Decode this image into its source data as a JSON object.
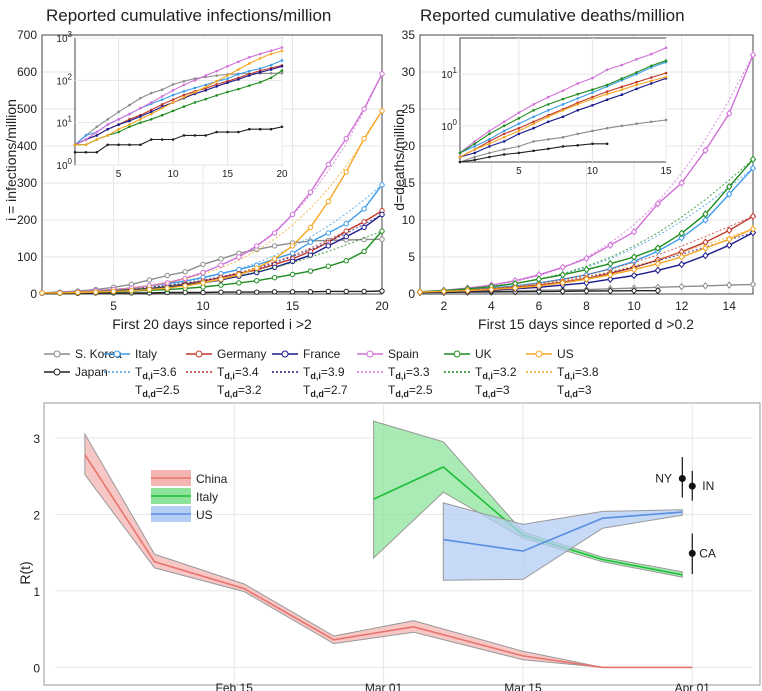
{
  "chart_data": [
    {
      "type": "line",
      "title": "Reported cumulative infections/million",
      "xlabel": "First 20 days since reported i >2",
      "ylabel": "i = infections/million",
      "xlim": [
        1,
        20
      ],
      "ylim": [
        0,
        700
      ],
      "xticks": [
        5,
        10,
        15,
        20
      ],
      "yticks": [
        0,
        100,
        200,
        300,
        400,
        500,
        600,
        700
      ],
      "grid": true,
      "x": [
        1,
        2,
        3,
        4,
        5,
        6,
        7,
        8,
        9,
        10,
        11,
        12,
        13,
        14,
        15,
        16,
        17,
        18,
        19,
        20
      ],
      "series": [
        {
          "name": "S. Korea",
          "color": "#8c8c8c",
          "values": [
            3,
            5,
            8,
            12,
            18,
            26,
            38,
            50,
            60,
            80,
            95,
            110,
            120,
            130,
            138,
            143,
            145,
            146,
            147,
            148
          ]
        },
        {
          "name": "Japan",
          "color": "#222222",
          "values": [
            2,
            2,
            2,
            3,
            3,
            3,
            3,
            4,
            4,
            4,
            5,
            5,
            5,
            6,
            6,
            6,
            7,
            7,
            7,
            8
          ]
        },
        {
          "name": "Italy",
          "color": "#3d9be9",
          "values": [
            3,
            5,
            6,
            9,
            12,
            16,
            22,
            28,
            35,
            45,
            55,
            66,
            78,
            95,
            110,
            140,
            165,
            190,
            230,
            295
          ]
        },
        {
          "name": "Germany",
          "color": "#c0392b",
          "values": [
            3,
            4,
            5,
            7,
            9,
            12,
            15,
            20,
            27,
            35,
            45,
            55,
            65,
            80,
            95,
            115,
            140,
            170,
            195,
            225
          ]
        },
        {
          "name": "France",
          "color": "#1a1a8c",
          "values": [
            3,
            4,
            5,
            7,
            9,
            11,
            14,
            18,
            24,
            30,
            38,
            48,
            58,
            72,
            88,
            105,
            130,
            155,
            180,
            215
          ]
        },
        {
          "name": "Spain",
          "color": "#d070d8",
          "values": [
            3,
            4,
            6,
            9,
            12,
            16,
            22,
            30,
            42,
            58,
            78,
            100,
            130,
            165,
            215,
            275,
            350,
            420,
            500,
            595
          ]
        },
        {
          "name": "UK",
          "color": "#1e8c1e",
          "values": [
            3,
            3,
            4,
            5,
            6,
            8,
            10,
            12,
            15,
            19,
            24,
            30,
            36,
            44,
            53,
            62,
            75,
            90,
            115,
            170
          ]
        },
        {
          "name": "US",
          "color": "#f5a623",
          "values": [
            3,
            3,
            4,
            5,
            7,
            9,
            12,
            16,
            22,
            30,
            40,
            52,
            70,
            95,
            130,
            180,
            250,
            330,
            420,
            495
          ]
        }
      ],
      "legend": [
        {
          "name": "S. Korea",
          "color": "#8c8c8c",
          "fit": ""
        },
        {
          "name": "Japan",
          "color": "#222222",
          "fit": ""
        },
        {
          "name": "Italy",
          "color": "#3d9be9",
          "fit": "T",
          "fitSub": "d,i",
          "fitVal": "=3.6"
        },
        {
          "name": "Germany",
          "color": "#c0392b",
          "fit": "T",
          "fitSub": "d,i",
          "fitVal": "=3.4"
        },
        {
          "name": "France",
          "color": "#1a1a8c",
          "fit": "T",
          "fitSub": "d,i",
          "fitVal": "=3.9"
        },
        {
          "name": "Spain",
          "color": "#d070d8",
          "fit": "T",
          "fitSub": "d,i",
          "fitVal": "=3.3"
        },
        {
          "name": "UK",
          "color": "#1e8c1e",
          "fit": "T",
          "fitSub": "d,i",
          "fitVal": "=3.2"
        },
        {
          "name": "US",
          "color": "#f5a623",
          "fit": "T",
          "fitSub": "d,i",
          "fitVal": "=3.8"
        }
      ],
      "inset": {
        "xlim": [
          1,
          20
        ],
        "ylim_log": [
          1,
          1000
        ],
        "xticks": [
          5,
          10,
          15,
          20
        ],
        "yticks": [
          {
            "base": "10",
            "exp": "0"
          },
          {
            "base": "10",
            "exp": "1"
          },
          {
            "base": "10",
            "exp": "2"
          },
          {
            "base": "10",
            "exp": "3"
          }
        ],
        "scale": "log"
      }
    },
    {
      "type": "line",
      "title": "Reported cumulative deaths/million",
      "xlabel": "First 15 days since reported d >0.2",
      "ylabel": "d=deaths/million",
      "xlim": [
        1,
        15
      ],
      "ylim": [
        0,
        35
      ],
      "xticks": [
        2,
        4,
        6,
        8,
        10,
        12,
        14
      ],
      "yticks": [
        0,
        5,
        10,
        15,
        20,
        25,
        30,
        35
      ],
      "grid": true,
      "x": [
        1,
        2,
        3,
        4,
        5,
        6,
        7,
        8,
        9,
        10,
        11,
        12,
        13,
        14,
        15
      ],
      "series": [
        {
          "name": "S. Korea",
          "color": "#8c8c8c",
          "values": [
            0.2,
            0.25,
            0.3,
            0.35,
            0.4,
            0.5,
            0.55,
            0.6,
            0.7,
            0.8,
            0.9,
            1.0,
            1.1,
            1.2,
            1.3
          ]
        },
        {
          "name": "Japan",
          "color": "#222222",
          "values": [
            0.2,
            0.22,
            0.25,
            0.28,
            0.3,
            0.33,
            0.36,
            0.4,
            0.42,
            0.45,
            0.45,
            null,
            null,
            null,
            null
          ]
        },
        {
          "name": "Italy",
          "color": "#3d9be9",
          "values": [
            0.3,
            0.4,
            0.55,
            0.8,
            1.1,
            1.5,
            2.0,
            2.6,
            3.4,
            4.4,
            5.8,
            7.6,
            10.0,
            13.5,
            17.0
          ]
        },
        {
          "name": "Germany",
          "color": "#c0392b",
          "values": [
            0.25,
            0.35,
            0.5,
            0.7,
            0.9,
            1.2,
            1.6,
            2.1,
            2.8,
            3.6,
            4.6,
            5.7,
            7.0,
            8.6,
            10.5
          ]
        },
        {
          "name": "France",
          "color": "#1a1a8c",
          "values": [
            0.25,
            0.3,
            0.4,
            0.5,
            0.7,
            0.9,
            1.2,
            1.5,
            2.0,
            2.5,
            3.2,
            4.0,
            5.2,
            6.6,
            8.3
          ]
        },
        {
          "name": "Spain",
          "color": "#d070d8",
          "values": [
            0.3,
            0.5,
            0.8,
            1.2,
            1.8,
            2.6,
            3.6,
            4.8,
            6.6,
            8.4,
            12.2,
            15.0,
            19.4,
            24.4,
            32.3
          ]
        },
        {
          "name": "UK",
          "color": "#1e8c1e",
          "values": [
            0.3,
            0.45,
            0.7,
            1.0,
            1.4,
            2.0,
            2.6,
            3.3,
            4.1,
            5.0,
            6.2,
            8.2,
            10.8,
            14.5,
            18.2
          ]
        },
        {
          "name": "US",
          "color": "#f5a623",
          "values": [
            0.25,
            0.35,
            0.45,
            0.6,
            0.8,
            1.1,
            1.5,
            2.0,
            2.6,
            3.3,
            4.1,
            5.0,
            6.2,
            7.4,
            8.8
          ]
        }
      ],
      "legend": [
        {
          "name": "Italy",
          "fit": "T",
          "fitSub": "d,d",
          "fitVal": "=2.5"
        },
        {
          "name": "Germany",
          "fit": "T",
          "fitSub": "d,d",
          "fitVal": "=3.2"
        },
        {
          "name": "France",
          "fit": "T",
          "fitSub": "d,d",
          "fitVal": "=2.7"
        },
        {
          "name": "Spain",
          "fit": "T",
          "fitSub": "d,d",
          "fitVal": "=2.5"
        },
        {
          "name": "UK",
          "fit": "T",
          "fitSub": "d,d",
          "fitVal": "=3"
        },
        {
          "name": "US",
          "fit": "T",
          "fitSub": "d,d",
          "fitVal": "=3"
        }
      ],
      "inset": {
        "xlim": [
          1,
          15
        ],
        "ylim_log": [
          0.2,
          50
        ],
        "xticks": [
          5,
          10,
          15
        ],
        "yticks": [
          {
            "base": "10",
            "exp": "0"
          },
          {
            "base": "10",
            "exp": "1"
          }
        ],
        "scale": "log"
      }
    },
    {
      "type": "area",
      "title": "",
      "xlabel": "",
      "ylabel": "R(t)",
      "ylim": [
        -0.1,
        3.3
      ],
      "yticks": [
        0,
        1,
        2,
        3
      ],
      "xticks": [
        {
          "label": "Feb 15",
          "day": 46
        },
        {
          "label": "Mar 01",
          "day": 61
        },
        {
          "label": "Mar 15",
          "day": 75
        },
        {
          "label": "Apr 01",
          "day": 92
        }
      ],
      "xlim_day": [
        28,
        98
      ],
      "grid": true,
      "legend_position": "upper-left",
      "series": [
        {
          "name": "China",
          "color": "#e8746f",
          "fill": "#f4b4b1",
          "day": [
            31,
            38,
            47,
            56,
            64,
            75,
            83,
            92
          ],
          "values": [
            2.78,
            1.38,
            1.03,
            0.36,
            0.53,
            0.15,
            0.0,
            0.0
          ],
          "lower": [
            2.52,
            1.3,
            0.99,
            0.31,
            0.46,
            0.1,
            0.0,
            0.0
          ],
          "upper": [
            3.05,
            1.48,
            1.09,
            0.41,
            0.61,
            0.21,
            0.0,
            0.0
          ]
        },
        {
          "name": "Italy",
          "color": "#1fbf3a",
          "fill": "#8ee39b",
          "day": [
            60,
            67,
            75,
            83,
            91
          ],
          "values": [
            2.2,
            2.62,
            1.73,
            1.41,
            1.21
          ],
          "lower": [
            1.43,
            2.29,
            1.69,
            1.38,
            1.18
          ],
          "upper": [
            3.22,
            2.95,
            1.77,
            1.44,
            1.25
          ]
        },
        {
          "name": "US",
          "color": "#5a8fe0",
          "fill": "#b3cdf5",
          "day": [
            67,
            75,
            83,
            91
          ],
          "values": [
            1.67,
            1.52,
            1.95,
            2.03
          ],
          "lower": [
            1.14,
            1.15,
            1.82,
            1.99
          ],
          "upper": [
            2.15,
            1.87,
            2.04,
            2.06
          ]
        }
      ],
      "points": [
        {
          "label": "NY",
          "day": 91,
          "value": 2.47,
          "lo": 2.22,
          "hi": 2.75
        },
        {
          "label": "IN",
          "day": 92,
          "value": 2.37,
          "lo": 2.18,
          "hi": 2.57
        },
        {
          "label": "CA",
          "day": 92,
          "value": 1.49,
          "lo": 1.22,
          "hi": 1.75
        }
      ]
    }
  ]
}
